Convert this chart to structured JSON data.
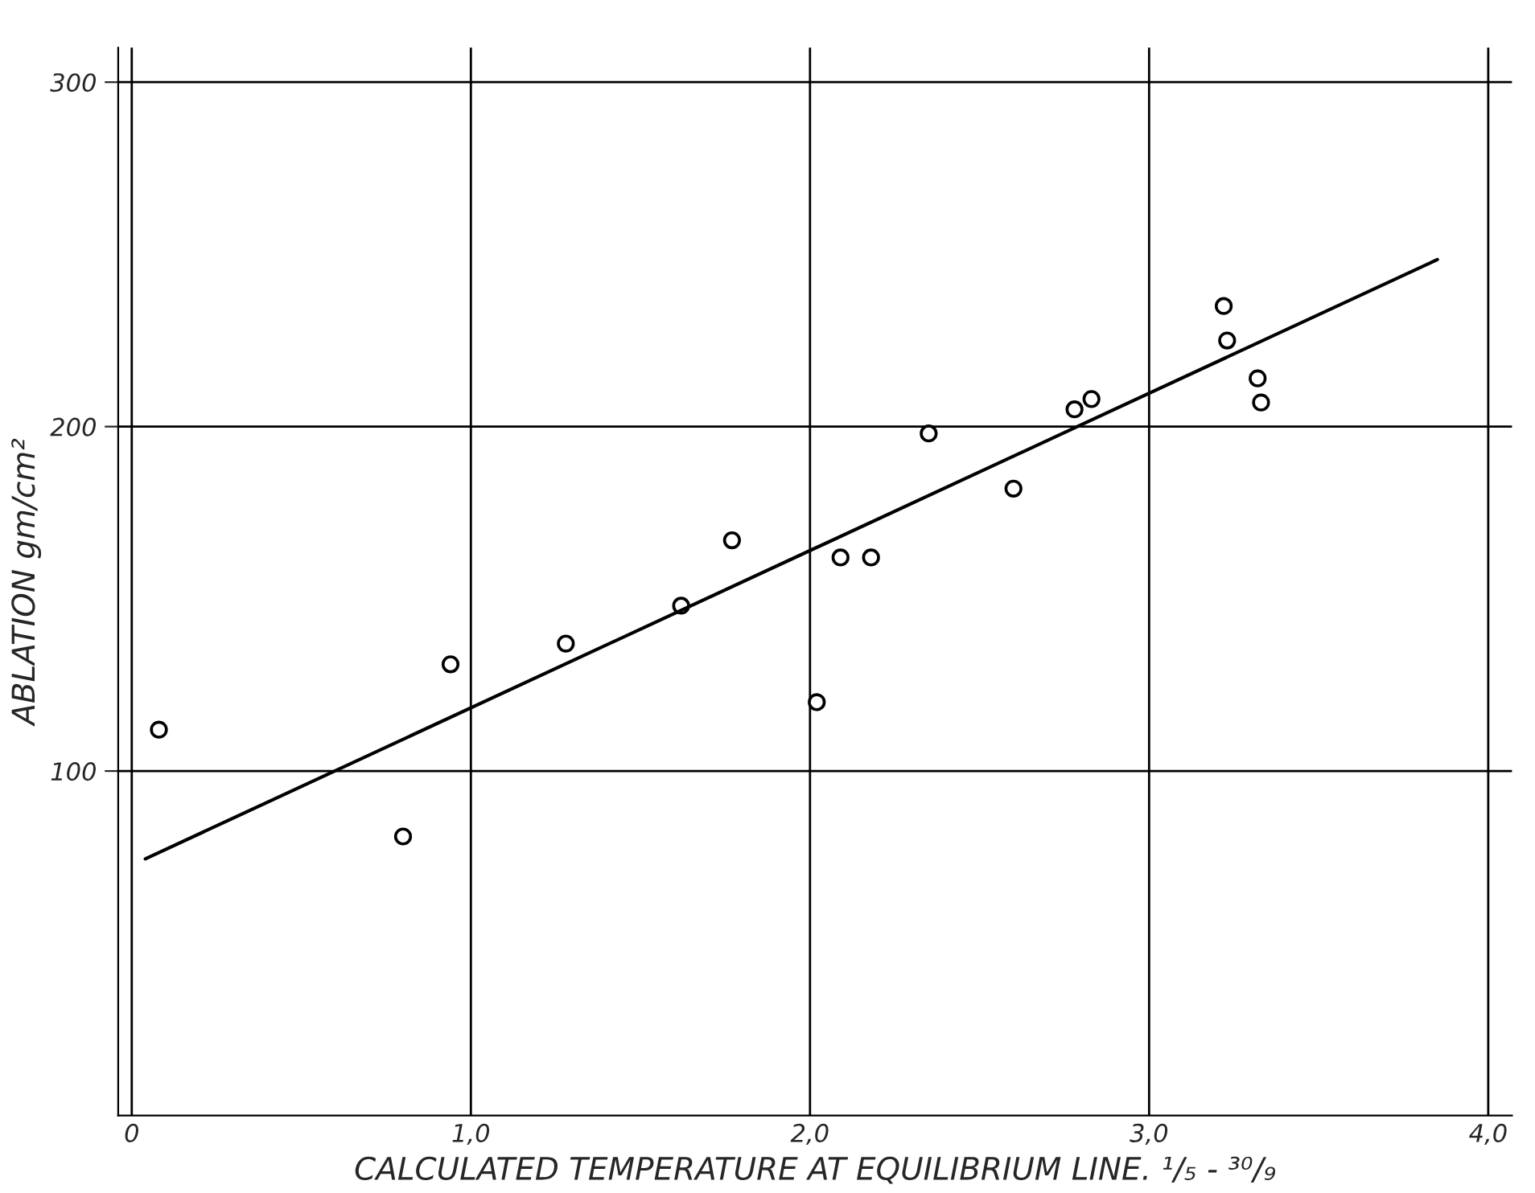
{
  "chart_data": {
    "type": "scatter",
    "xlabel": "CALCULATED TEMPERATURE AT EQUILIBRIUM LINE. ¹/₅ - ³⁰/₉",
    "ylabel": "ABLATION gm/cm²",
    "series": [
      {
        "color": "#000000",
        "marker": "circle",
        "x": [
          0.08,
          0.8,
          0.94,
          1.28,
          1.62,
          1.77,
          2.02,
          2.09,
          2.18,
          2.35,
          2.6,
          2.78,
          2.83,
          3.22,
          3.23,
          3.32,
          3.33
        ],
        "values": [
          112,
          81,
          131,
          137,
          148,
          167,
          120,
          162,
          162,
          198,
          182,
          205,
          208,
          235,
          225,
          214,
          207
        ]
      },
      {
        "type": "line",
        "color": "#000000",
        "marker": "none",
        "x": [
          0.04,
          3.85
        ],
        "values": [
          74.5,
          248.5
        ]
      }
    ],
    "xlim": [
      -0.04,
      4.07
    ],
    "ylim": [
      0,
      310
    ],
    "xticks": [
      0,
      {
        "value": 1,
        "label": "1,0"
      },
      {
        "value": 2,
        "label": "2,0"
      },
      {
        "value": 3,
        "label": "3,0"
      },
      {
        "value": 4,
        "label": "4,0"
      }
    ],
    "yticks": [
      100,
      200,
      300
    ],
    "grid": true,
    "legend": false
  }
}
